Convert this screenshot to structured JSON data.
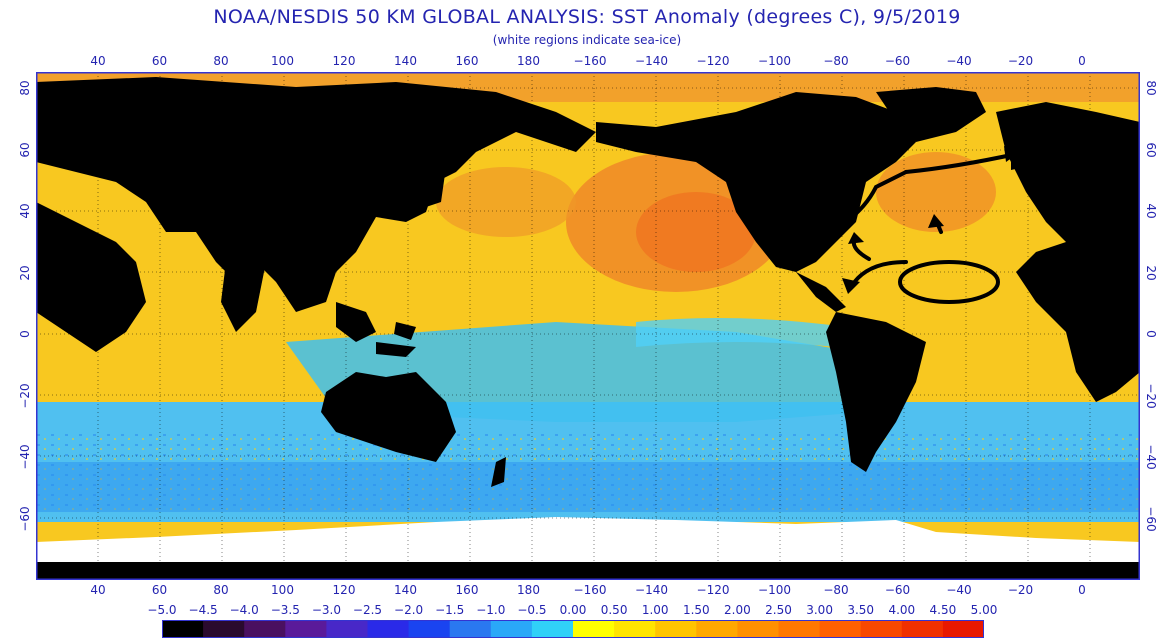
{
  "header": {
    "title": "NOAA/NESDIS 50 KM GLOBAL ANALYSIS: SST Anomaly (degrees C), 9/5/2019",
    "subtitle": "(white regions indicate sea-ice)"
  },
  "axes": {
    "lon_labels": [
      "40",
      "60",
      "80",
      "100",
      "120",
      "140",
      "160",
      "180",
      "−160",
      "−140",
      "−120",
      "−100",
      "−80",
      "−60",
      "−40",
      "−20",
      "0"
    ],
    "lat_labels_left": [
      "80",
      "60",
      "40",
      "20",
      "0",
      "−20",
      "−40",
      "−60"
    ],
    "lat_labels_right": [
      "80",
      "60",
      "40",
      "20",
      "0",
      "−20",
      "−40",
      "−60"
    ]
  },
  "colorbar": {
    "labels": [
      "−5.0",
      "−4.5",
      "−4.0",
      "−3.5",
      "−3.0",
      "−2.5",
      "−2.0",
      "−1.5",
      "−1.0",
      "−0.5",
      "0.00",
      "0.50",
      "1.00",
      "1.50",
      "2.00",
      "2.50",
      "3.00",
      "3.50",
      "4.00",
      "4.50",
      "5.00"
    ],
    "colors": [
      "#000000",
      "#2a0a2e",
      "#4a1060",
      "#5a1a9a",
      "#4828c8",
      "#2a2ae8",
      "#1a44f0",
      "#2a78f0",
      "#2aa8f8",
      "#30d0f8",
      "#ffff00",
      "#ffe400",
      "#ffc400",
      "#ffa800",
      "#ff9000",
      "#ff7800",
      "#ff6000",
      "#f84800",
      "#f03000",
      "#e81800"
    ]
  },
  "palette": {
    "land": "#000000",
    "ice": "#ffffff",
    "frame": "#3434d0",
    "ocean_warm": "#f8b020",
    "ocean_hot": "#f08020",
    "ocean_neutral": "#f0e020",
    "ocean_cool": "#40c8f0",
    "ocean_cold": "#2a7ae8"
  }
}
